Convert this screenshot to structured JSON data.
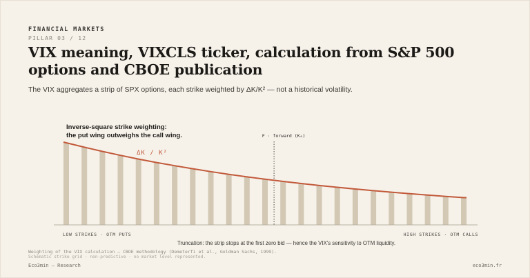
{
  "header": {
    "kicker": "FINANCIAL MARKETS",
    "pillar": "PILLAR 03 / 12",
    "title": "VIX meaning, VIXCLS ticker, calculation from S&P 500 options and CBOE publication",
    "subtitle": "The VIX aggregates a strip of SPX options, each strike weighted by ΔK/K² — not a historical volatility."
  },
  "chart_data": {
    "type": "bar",
    "values": [
      100,
      94.6,
      89.5,
      84.7,
      80.2,
      76.0,
      72.1,
      68.4,
      64.9,
      61.6,
      58.5,
      55.6,
      52.9,
      50.4,
      48.0,
      45.8,
      43.7,
      41.7,
      39.8,
      38.0,
      36.3,
      34.7,
      33.2
    ],
    "ylim": [
      0,
      100
    ],
    "series_label": "ΔK / K²",
    "annotation": {
      "line1": "Inverse-square strike weighting:",
      "line2": "the put wing outweighs the call wing."
    },
    "forward_label": "F · forward (K₀)",
    "forward_index": 11.5,
    "x_left_label": "LOW STRIKES · OTM PUTS",
    "x_right_label": "HIGH STRIKES · OTM CALLS",
    "caption": "Truncation: the strip stops at the first zero bid — hence the VIX's sensitivity to OTM liquidity.",
    "colors": {
      "bar": "#d2c8b4",
      "curve": "#c2593a",
      "axis": "#b8b1a3",
      "text": "#2c2a26"
    }
  },
  "footer": {
    "source": "Weighting of the VIX calculation — CBOE methodology (Demeterfi et al., Goldman Sachs, 1999).",
    "note": "Schematic strike grid · non-predictive · no market level represented.",
    "brand": "Eco3min — Research",
    "site": "eco3min.fr"
  }
}
